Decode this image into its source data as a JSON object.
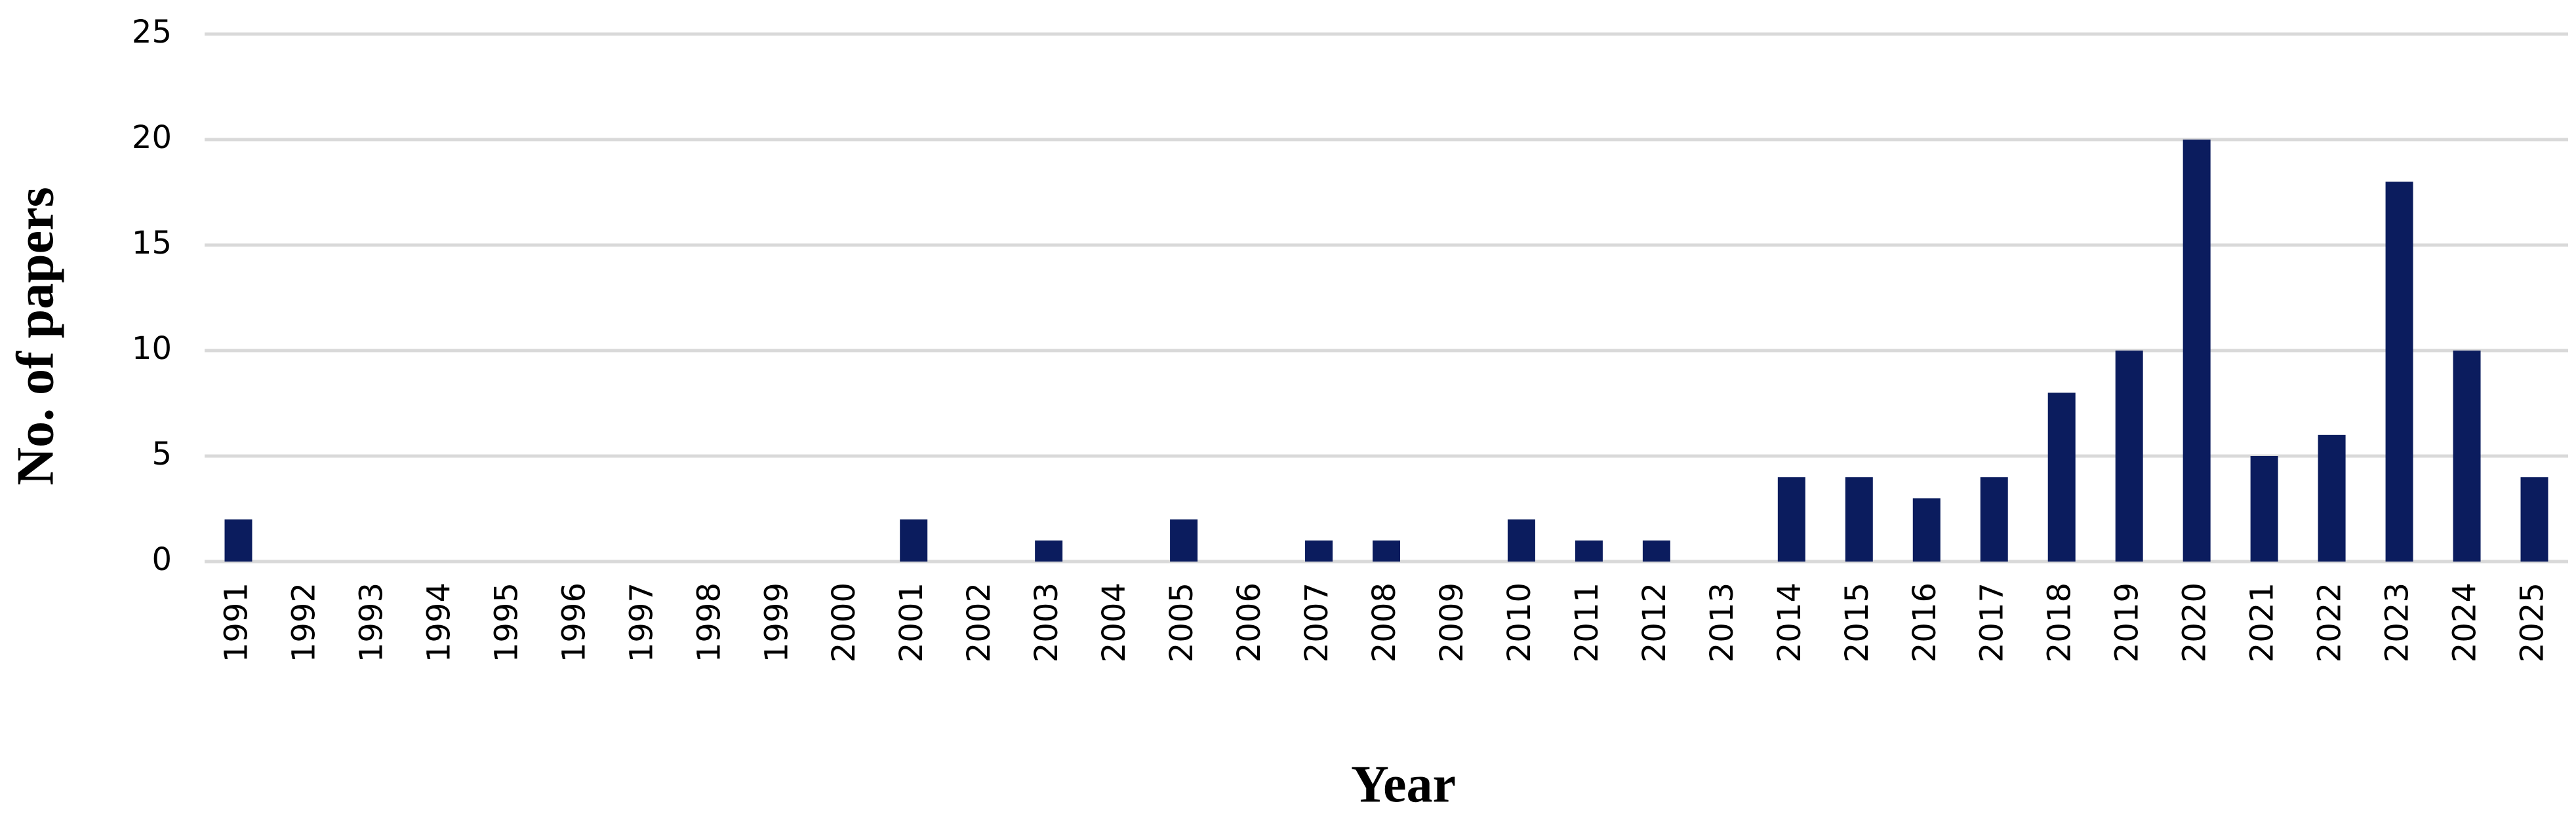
{
  "chart_data": {
    "type": "bar",
    "x_label": "Year",
    "y_label": "No. of papers",
    "categories": [
      "1991",
      "1992",
      "1993",
      "1994",
      "1995",
      "1996",
      "1997",
      "1998",
      "1999",
      "2000",
      "2001",
      "2002",
      "2003",
      "2004",
      "2005",
      "2006",
      "2007",
      "2008",
      "2009",
      "2010",
      "2011",
      "2012",
      "2013",
      "2014",
      "2015",
      "2016",
      "2017",
      "2018",
      "2019",
      "2020",
      "2021",
      "2022",
      "2023",
      "2024",
      "2025"
    ],
    "values": [
      2,
      0,
      0,
      0,
      0,
      0,
      0,
      0,
      0,
      0,
      2,
      0,
      1,
      0,
      2,
      0,
      1,
      1,
      0,
      2,
      1,
      1,
      0,
      4,
      4,
      3,
      4,
      8,
      10,
      20,
      5,
      6,
      18,
      10,
      4
    ],
    "color": "#0b1c5e",
    "ylim": [
      0,
      25
    ],
    "yticks": [
      0,
      5,
      10,
      15,
      20,
      25
    ],
    "grid": true
  }
}
